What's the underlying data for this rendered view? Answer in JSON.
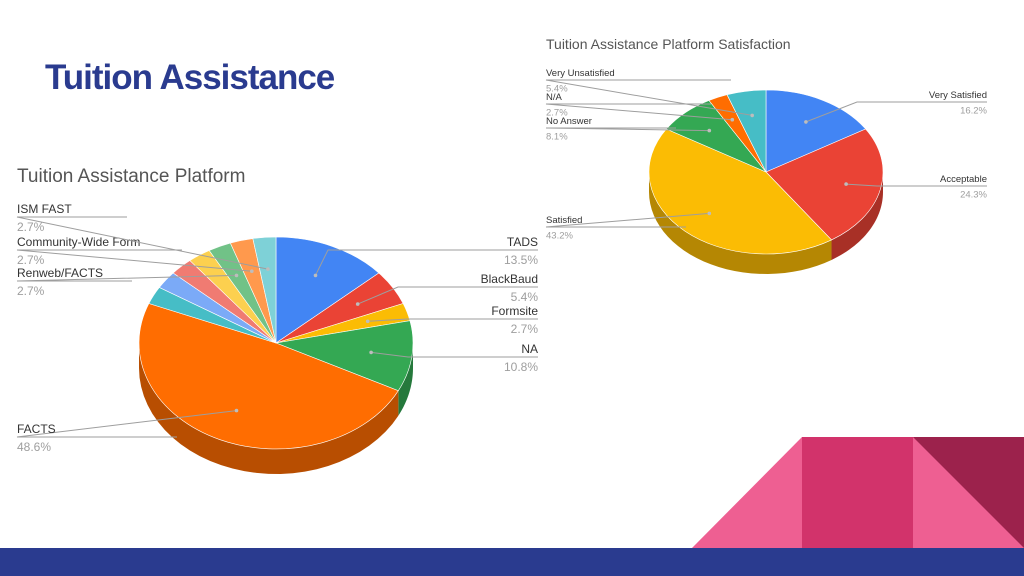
{
  "slide": {
    "title": "Tuition Assistance"
  },
  "colors": {
    "title": "#2a3b8f",
    "footer_bar": "#2a3b8f",
    "decor_pink_light": "#ee5f92",
    "decor_pink_mid": "#d2336b",
    "decor_maroon": "#9c224c"
  },
  "chart_data": [
    {
      "type": "pie",
      "title": "Tuition Assistance Platform",
      "slices": [
        {
          "label": "TADS",
          "value": 13.5,
          "display": "13.5%",
          "color": "#4285f4"
        },
        {
          "label": "BlackBaud",
          "value": 5.4,
          "display": "5.4%",
          "color": "#ea4335"
        },
        {
          "label": "Formsite",
          "value": 2.7,
          "display": "2.7%",
          "color": "#fbbc04"
        },
        {
          "label": "NA",
          "value": 10.8,
          "display": "10.8%",
          "color": "#34a853"
        },
        {
          "label": "FACTS",
          "value": 48.6,
          "display": "48.6%",
          "color": "#ff6d01"
        },
        {
          "label": "",
          "value": 2.7,
          "display": "",
          "color": "#46bdc6"
        },
        {
          "label": "",
          "value": 2.7,
          "display": "",
          "color": "#7baaf7"
        },
        {
          "label": "",
          "value": 2.7,
          "display": "",
          "color": "#f07b72"
        },
        {
          "label": "",
          "value": 2.7,
          "display": "",
          "color": "#fcd04f"
        },
        {
          "label": "Renweb/FACTS",
          "value": 2.7,
          "display": "2.7%",
          "color": "#71c287"
        },
        {
          "label": "Community-Wide Form",
          "value": 2.7,
          "display": "2.7%",
          "color": "#ff994d"
        },
        {
          "label": "ISM FAST",
          "value": 2.7,
          "display": "2.7%",
          "color": "#7ed1d7"
        }
      ]
    },
    {
      "type": "pie",
      "title": "Tuition Assistance Platform Satisfaction",
      "slices": [
        {
          "label": "Very Satisfied",
          "value": 16.2,
          "display": "16.2%",
          "color": "#4285f4"
        },
        {
          "label": "Acceptable",
          "value": 24.3,
          "display": "24.3%",
          "color": "#ea4335"
        },
        {
          "label": "Satisfied",
          "value": 43.2,
          "display": "43.2%",
          "color": "#fbbc04"
        },
        {
          "label": "No Answer",
          "value": 8.1,
          "display": "8.1%",
          "color": "#34a853"
        },
        {
          "label": "N/A",
          "value": 2.7,
          "display": "2.7%",
          "color": "#ff6d01"
        },
        {
          "label": "Very Unsatisfied",
          "value": 5.4,
          "display": "5.4%",
          "color": "#46bdc6"
        }
      ]
    }
  ]
}
